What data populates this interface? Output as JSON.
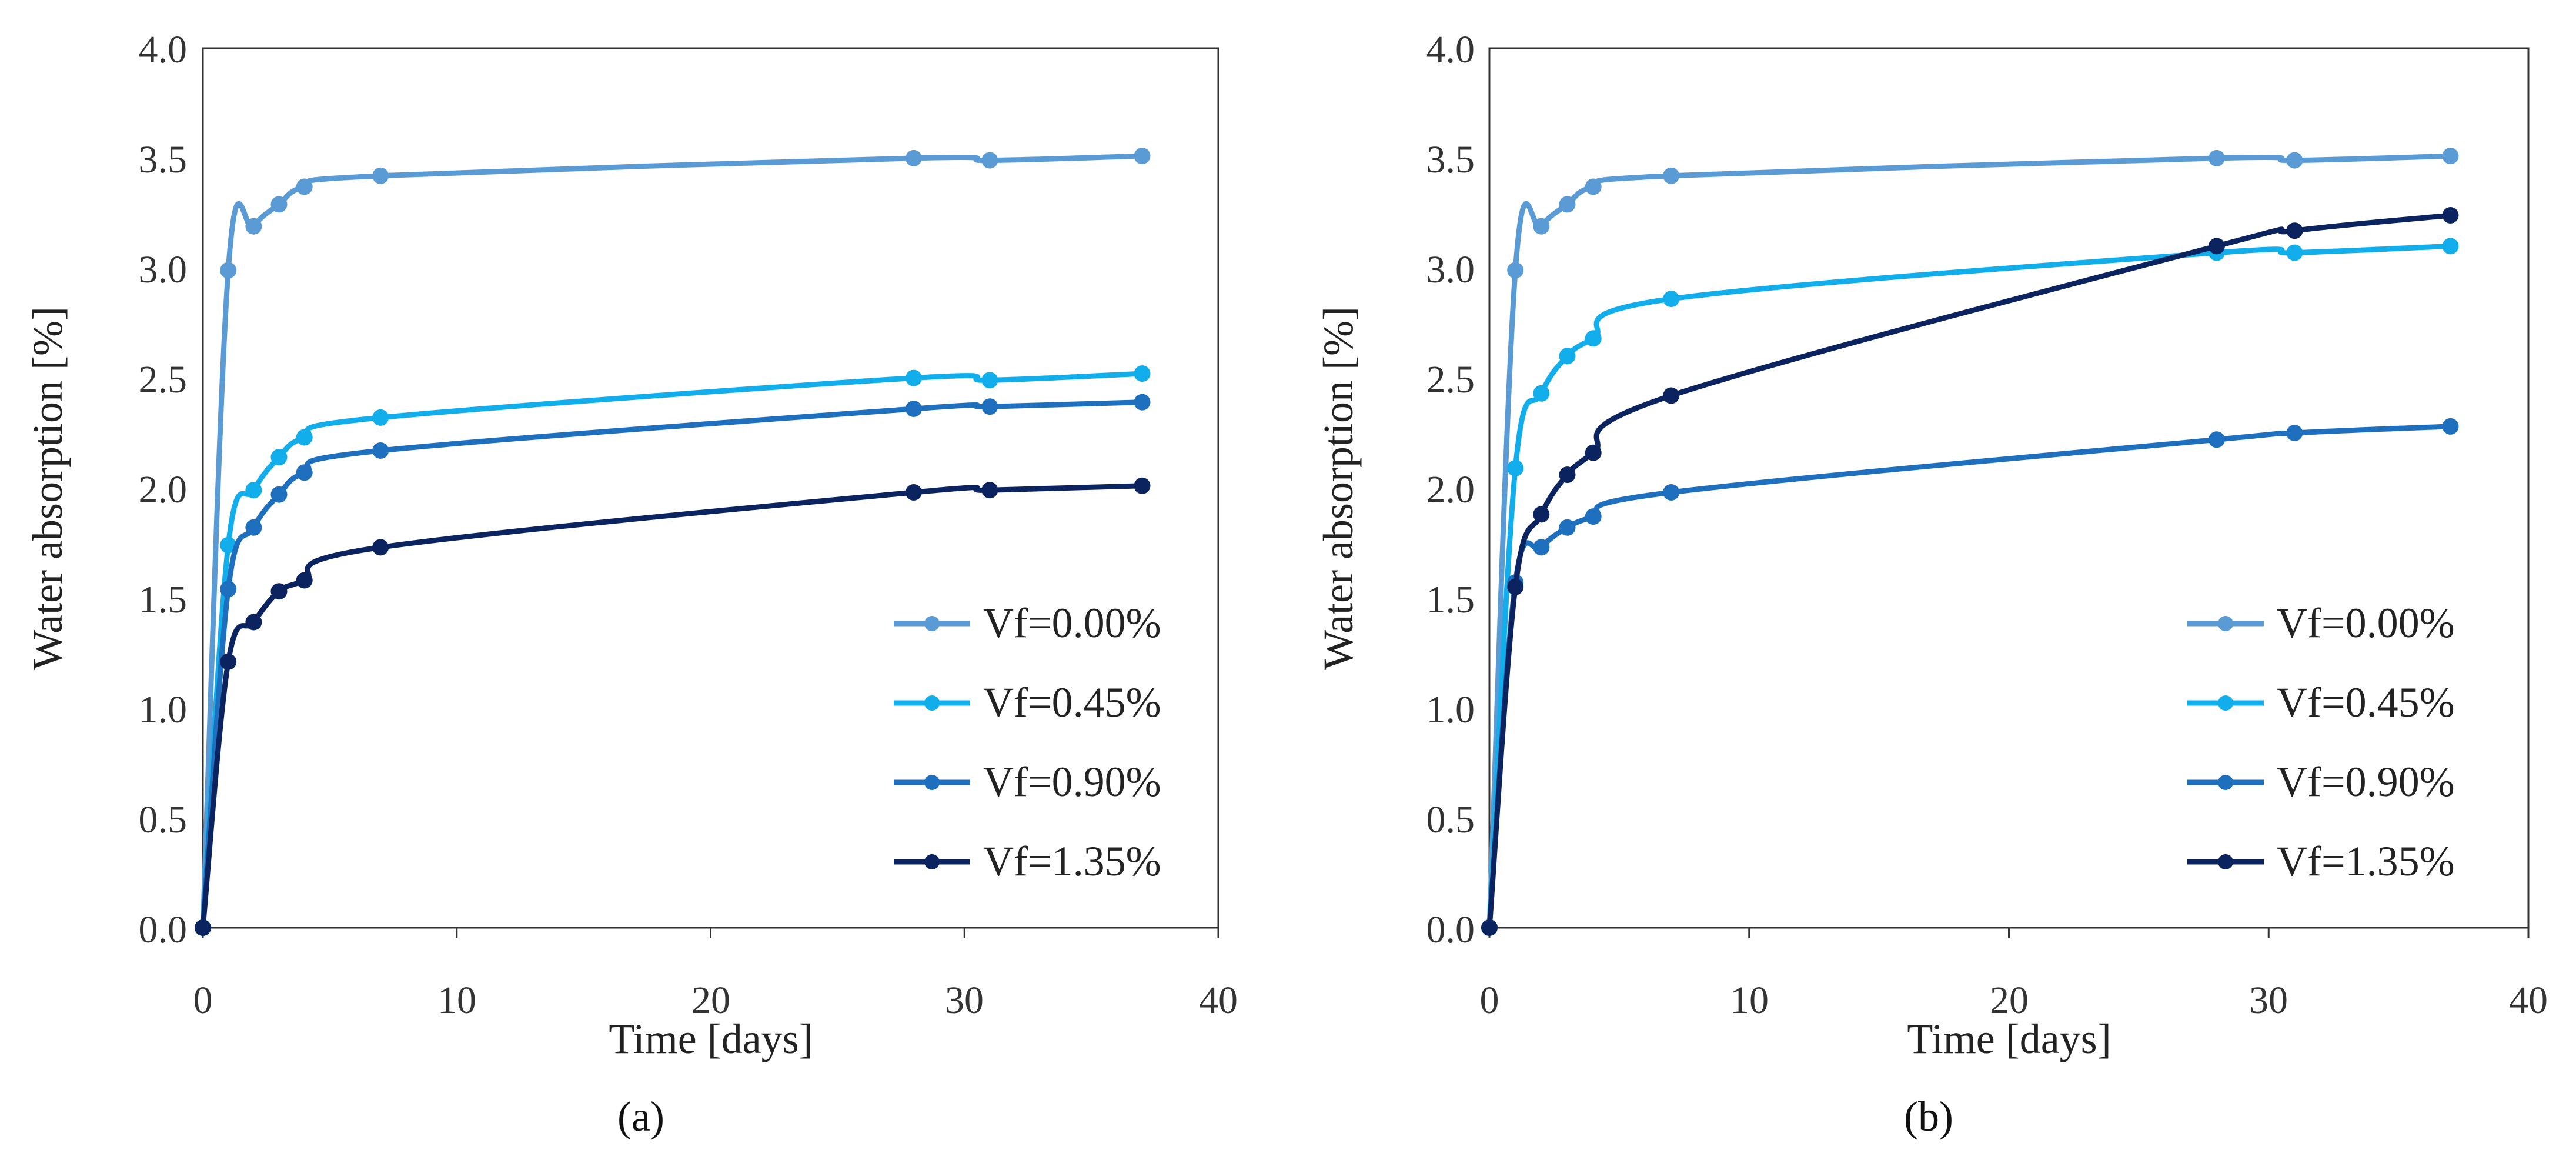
{
  "chart_data": [
    {
      "type": "line",
      "panel_label": "(a)",
      "xlabel": "Time [days]",
      "ylabel": "Water absorption [%]",
      "xlim": [
        0,
        40
      ],
      "ylim": [
        0,
        4.0
      ],
      "xticks": [
        0,
        10,
        20,
        30,
        40
      ],
      "xtick_labels": [
        "0",
        "10",
        "20",
        "30",
        "40"
      ],
      "yticks": [
        0,
        0.5,
        1.0,
        1.5,
        2.0,
        2.5,
        3.0,
        3.5,
        4.0
      ],
      "ytick_labels": [
        "0.0",
        "0.5",
        "1.0",
        "1.5",
        "2.0",
        "2.5",
        "3.0",
        "3.5",
        "4.0"
      ],
      "grid": false,
      "legend_position": "lower-right",
      "series": [
        {
          "name": "Vf=0.00%",
          "color": "#5B9BD5",
          "x": [
            0,
            1,
            2,
            3,
            4,
            7,
            28,
            31,
            37
          ],
          "y": [
            0,
            2.99,
            3.19,
            3.29,
            3.37,
            3.42,
            3.5,
            3.49,
            3.51
          ]
        },
        {
          "name": "Vf=0.45%",
          "color": "#12ADEB",
          "x": [
            0,
            1,
            2,
            3,
            4,
            7,
            28,
            31,
            37
          ],
          "y": [
            0,
            1.74,
            1.99,
            2.14,
            2.23,
            2.32,
            2.5,
            2.49,
            2.52
          ]
        },
        {
          "name": "Vf=0.90%",
          "color": "#1F6FBF",
          "x": [
            0,
            1,
            2,
            3,
            4,
            7,
            28,
            31,
            37
          ],
          "y": [
            0,
            1.54,
            1.82,
            1.97,
            2.07,
            2.17,
            2.36,
            2.37,
            2.39
          ]
        },
        {
          "name": "Vf=1.35%",
          "color": "#0B2460",
          "x": [
            0,
            1,
            2,
            3,
            4,
            7,
            28,
            31,
            37
          ],
          "y": [
            0,
            1.21,
            1.39,
            1.53,
            1.58,
            1.73,
            1.98,
            1.99,
            2.01
          ]
        }
      ]
    },
    {
      "type": "line",
      "panel_label": "(b)",
      "xlabel": "Time [days]",
      "ylabel": "Water absorption [%]",
      "xlim": [
        0,
        40
      ],
      "ylim": [
        0,
        4.0
      ],
      "xticks": [
        0,
        10,
        20,
        30,
        40
      ],
      "xtick_labels": [
        "0",
        "10",
        "20",
        "30",
        "40"
      ],
      "yticks": [
        0,
        0.5,
        1.0,
        1.5,
        2.0,
        2.5,
        3.0,
        3.5,
        4.0
      ],
      "ytick_labels": [
        "0.0",
        "0.5",
        "1.0",
        "1.5",
        "2.0",
        "2.5",
        "3.0",
        "3.5",
        "4.0"
      ],
      "grid": false,
      "legend_position": "lower-right",
      "series": [
        {
          "name": "Vf=0.00%",
          "color": "#5B9BD5",
          "x": [
            0,
            1,
            2,
            3,
            4,
            7,
            28,
            31,
            37
          ],
          "y": [
            0,
            2.99,
            3.19,
            3.29,
            3.37,
            3.42,
            3.5,
            3.49,
            3.51
          ]
        },
        {
          "name": "Vf=0.45%",
          "color": "#12ADEB",
          "x": [
            0,
            1,
            2,
            3,
            4,
            7,
            28,
            31,
            37
          ],
          "y": [
            0,
            2.09,
            2.43,
            2.6,
            2.68,
            2.86,
            3.07,
            3.07,
            3.1
          ]
        },
        {
          "name": "Vf=0.90%",
          "color": "#1F6FBF",
          "x": [
            0,
            1,
            2,
            3,
            4,
            7,
            28,
            31,
            37
          ],
          "y": [
            0,
            1.57,
            1.73,
            1.82,
            1.87,
            1.98,
            2.22,
            2.25,
            2.28
          ]
        },
        {
          "name": "Vf=1.35%",
          "color": "#0B2460",
          "x": [
            0,
            1,
            2,
            3,
            4,
            7,
            28,
            31,
            37
          ],
          "y": [
            0,
            1.55,
            1.88,
            2.06,
            2.16,
            2.42,
            3.1,
            3.17,
            3.24
          ]
        }
      ]
    }
  ]
}
